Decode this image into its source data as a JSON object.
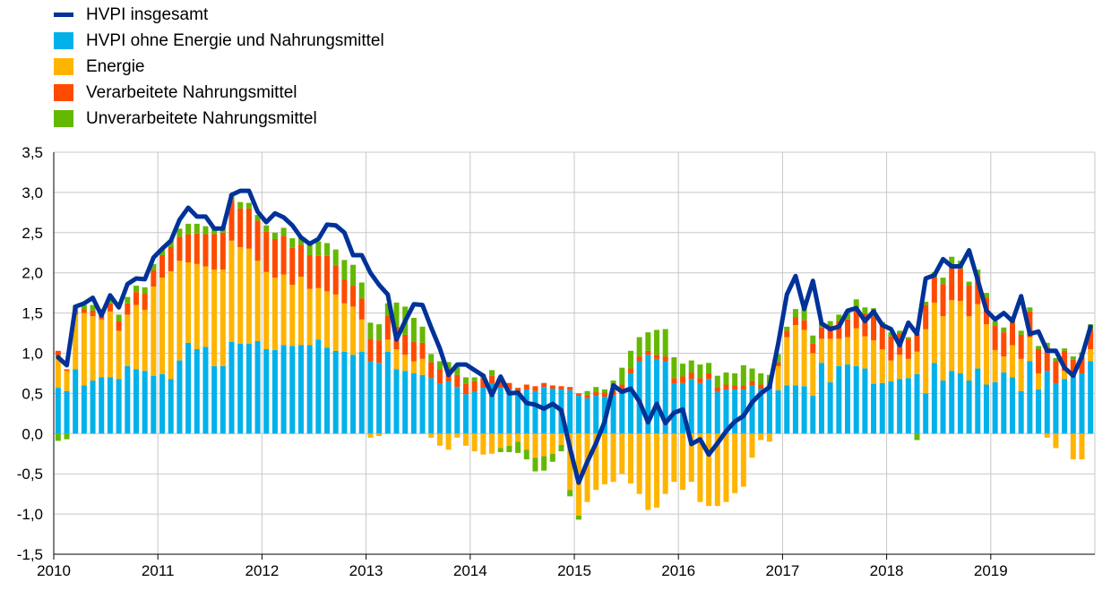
{
  "chart_data": {
    "type": "bar",
    "stacked": true,
    "x_label": "",
    "y_label": "",
    "grid": true,
    "legend_placement": "top-left",
    "x_start": "2010-01",
    "x_end": "2019-12",
    "x_ticks": [
      "2010",
      "2011",
      "2012",
      "2013",
      "2014",
      "2015",
      "2016",
      "2017",
      "2018",
      "2019"
    ],
    "y_ticks": [
      "3,5",
      "3,0",
      "2,5",
      "2,0",
      "1,5",
      "1,0",
      "0,5",
      "0,0",
      "-0,5",
      "-1,0",
      "-1,5"
    ],
    "ylim": [
      -1.5,
      3.5
    ],
    "series": [
      {
        "key": "core",
        "name": "HVPI ohne Energie und Nahrungsmittel",
        "kind": "bar",
        "color": "#00B1EA",
        "values": [
          0.57,
          0.53,
          0.8,
          0.6,
          0.66,
          0.7,
          0.7,
          0.68,
          0.84,
          0.8,
          0.78,
          0.72,
          0.74,
          0.68,
          0.91,
          1.13,
          1.05,
          1.08,
          0.84,
          0.84,
          1.14,
          1.12,
          1.12,
          1.15,
          1.05,
          1.04,
          1.1,
          1.09,
          1.1,
          1.1,
          1.17,
          1.07,
          1.03,
          1.02,
          0.98,
          1.02,
          0.9,
          0.88,
          1.02,
          0.8,
          0.78,
          0.75,
          0.73,
          0.69,
          0.62,
          0.65,
          0.58,
          0.49,
          0.52,
          0.57,
          0.62,
          0.57,
          0.55,
          0.5,
          0.55,
          0.53,
          0.58,
          0.56,
          0.55,
          0.54,
          0.47,
          0.44,
          0.47,
          0.46,
          0.48,
          0.55,
          0.75,
          0.9,
          0.98,
          0.93,
          0.9,
          0.62,
          0.63,
          0.68,
          0.63,
          0.68,
          0.52,
          0.55,
          0.55,
          0.55,
          0.6,
          0.56,
          0.56,
          0.54,
          0.6,
          0.6,
          0.59,
          0.47,
          0.88,
          0.64,
          0.84,
          0.86,
          0.84,
          0.81,
          0.62,
          0.63,
          0.65,
          0.68,
          0.69,
          0.74,
          0.5,
          0.88,
          0.66,
          0.78,
          0.75,
          0.66,
          0.81,
          0.61,
          0.64,
          0.76,
          0.7,
          0.53,
          0.9,
          0.55,
          0.78,
          0.62,
          0.68,
          0.7,
          0.75,
          0.9
        ]
      },
      {
        "key": "energy",
        "name": "Energie",
        "kind": "bar",
        "color": "#FFB400",
        "values": [
          0.4,
          0.25,
          0.68,
          0.9,
          0.8,
          0.72,
          0.82,
          0.6,
          0.64,
          0.8,
          0.76,
          1.11,
          1.2,
          1.34,
          1.24,
          1.0,
          1.06,
          1.0,
          1.2,
          1.2,
          1.26,
          1.2,
          1.18,
          1.0,
          0.96,
          0.9,
          0.88,
          0.76,
          0.85,
          0.7,
          0.64,
          0.7,
          0.7,
          0.6,
          0.6,
          0.4,
          -0.05,
          -0.03,
          0.15,
          0.25,
          0.2,
          0.15,
          0.2,
          -0.05,
          -0.15,
          -0.2,
          -0.05,
          -0.15,
          -0.22,
          -0.26,
          -0.25,
          -0.18,
          -0.15,
          -0.1,
          -0.2,
          -0.3,
          -0.28,
          -0.25,
          -0.14,
          -0.7,
          -1.02,
          -0.85,
          -0.7,
          -0.63,
          -0.6,
          -0.5,
          -0.62,
          -0.75,
          -0.95,
          -0.92,
          -0.75,
          -0.6,
          -0.7,
          -0.6,
          -0.85,
          -0.9,
          -0.9,
          -0.85,
          -0.74,
          -0.66,
          -0.3,
          -0.08,
          -0.1,
          0.3,
          0.6,
          0.75,
          0.7,
          0.53,
          0.3,
          0.54,
          0.34,
          0.34,
          0.47,
          0.4,
          0.54,
          0.42,
          0.26,
          0.3,
          0.24,
          0.28,
          0.8,
          0.75,
          0.8,
          0.88,
          0.9,
          0.8,
          0.8,
          0.75,
          0.4,
          0.2,
          0.4,
          0.4,
          0.3,
          0.2,
          -0.05,
          -0.18,
          0.1,
          -0.32,
          -0.32,
          0.15
        ]
      },
      {
        "key": "processed",
        "name": "Verarbeitete Nahrungsmittel",
        "kind": "bar",
        "color": "#FF4B00",
        "values": [
          0.06,
          0.02,
          0.05,
          0.05,
          0.07,
          0.08,
          0.1,
          0.12,
          0.14,
          0.16,
          0.2,
          0.2,
          0.28,
          0.3,
          0.3,
          0.35,
          0.38,
          0.4,
          0.44,
          0.46,
          0.5,
          0.48,
          0.5,
          0.5,
          0.5,
          0.48,
          0.48,
          0.46,
          0.4,
          0.42,
          0.4,
          0.44,
          0.36,
          0.3,
          0.26,
          0.26,
          0.28,
          0.28,
          0.3,
          0.28,
          0.25,
          0.24,
          0.2,
          0.2,
          0.18,
          0.16,
          0.15,
          0.13,
          0.13,
          0.12,
          0.1,
          0.1,
          0.08,
          0.07,
          0.06,
          0.06,
          0.05,
          0.04,
          0.04,
          0.04,
          0.03,
          0.04,
          0.05,
          0.05,
          0.05,
          0.06,
          0.06,
          0.06,
          0.05,
          0.05,
          0.06,
          0.07,
          0.08,
          0.08,
          0.06,
          0.07,
          0.06,
          0.06,
          0.05,
          0.05,
          0.05,
          0.05,
          0.05,
          0.05,
          0.08,
          0.1,
          0.12,
          0.12,
          0.14,
          0.16,
          0.22,
          0.22,
          0.22,
          0.28,
          0.3,
          0.3,
          0.3,
          0.27,
          0.25,
          0.22,
          0.3,
          0.32,
          0.4,
          0.42,
          0.4,
          0.38,
          0.35,
          0.33,
          0.3,
          0.3,
          0.28,
          0.3,
          0.32,
          0.3,
          0.3,
          0.28,
          0.25,
          0.22,
          0.2,
          0.25
        ]
      },
      {
        "key": "unprocessed",
        "name": "Unverarbeitete Nahrungsmittel",
        "kind": "bar",
        "color": "#65B800",
        "values": [
          -0.09,
          -0.07,
          0.07,
          0.05,
          0.07,
          0.05,
          0.05,
          0.08,
          0.08,
          0.08,
          0.08,
          0.08,
          0.07,
          0.08,
          0.1,
          0.13,
          0.12,
          0.1,
          0.07,
          0.08,
          0.08,
          0.08,
          0.07,
          0.07,
          0.08,
          0.08,
          0.1,
          0.12,
          0.1,
          0.17,
          0.18,
          0.16,
          0.2,
          0.24,
          0.26,
          0.2,
          0.2,
          0.2,
          0.15,
          0.3,
          0.35,
          0.3,
          0.2,
          0.1,
          0.1,
          0.08,
          0.1,
          0.08,
          0.05,
          0.05,
          0.07,
          -0.05,
          -0.08,
          -0.14,
          -0.12,
          -0.17,
          -0.18,
          -0.1,
          -0.08,
          -0.08,
          -0.05,
          0.05,
          0.06,
          0.04,
          0.13,
          0.21,
          0.22,
          0.24,
          0.23,
          0.31,
          0.34,
          0.26,
          0.16,
          0.15,
          0.17,
          0.13,
          0.14,
          0.15,
          0.15,
          0.25,
          0.16,
          0.14,
          0.12,
          0.1,
          0.05,
          0.1,
          0.18,
          0.1,
          0.06,
          0.06,
          0.08,
          0.1,
          0.14,
          0.08,
          0.1,
          0.04,
          0.05,
          0.03,
          0.02,
          -0.08,
          0.04,
          0.06,
          0.08,
          0.12,
          0.1,
          0.05,
          0.08,
          0.06,
          0.06,
          0.06,
          0.04,
          0.05,
          0.05,
          0.04,
          0.05,
          0.04,
          0.03,
          0.04,
          0.06,
          0.06
        ]
      },
      {
        "key": "total",
        "name": "HVPI insgesamt",
        "kind": "line",
        "color": "#003299",
        "values": [
          0.95,
          0.85,
          1.58,
          1.62,
          1.69,
          1.47,
          1.72,
          1.57,
          1.86,
          1.93,
          1.92,
          2.19,
          2.3,
          2.4,
          2.66,
          2.81,
          2.7,
          2.7,
          2.55,
          2.55,
          2.97,
          3.02,
          3.02,
          2.76,
          2.63,
          2.74,
          2.69,
          2.59,
          2.44,
          2.36,
          2.42,
          2.6,
          2.59,
          2.5,
          2.22,
          2.22,
          2.0,
          1.85,
          1.73,
          1.17,
          1.4,
          1.61,
          1.6,
          1.32,
          1.06,
          0.73,
          0.86,
          0.86,
          0.79,
          0.72,
          0.48,
          0.71,
          0.5,
          0.51,
          0.38,
          0.36,
          0.31,
          0.37,
          0.29,
          -0.18,
          -0.61,
          -0.35,
          -0.12,
          0.15,
          0.6,
          0.52,
          0.56,
          0.4,
          0.14,
          0.37,
          0.13,
          0.26,
          0.3,
          -0.13,
          -0.07,
          -0.26,
          -0.12,
          0.03,
          0.15,
          0.22,
          0.39,
          0.5,
          0.58,
          1.12,
          1.73,
          1.96,
          1.55,
          1.9,
          1.37,
          1.3,
          1.33,
          1.53,
          1.56,
          1.4,
          1.52,
          1.35,
          1.3,
          1.1,
          1.38,
          1.24,
          1.93,
          1.97,
          2.17,
          2.08,
          2.08,
          2.28,
          1.91,
          1.53,
          1.42,
          1.5,
          1.4,
          1.71,
          1.24,
          1.27,
          1.03,
          1.03,
          0.82,
          0.72,
          0.96,
          1.33
        ]
      }
    ]
  }
}
